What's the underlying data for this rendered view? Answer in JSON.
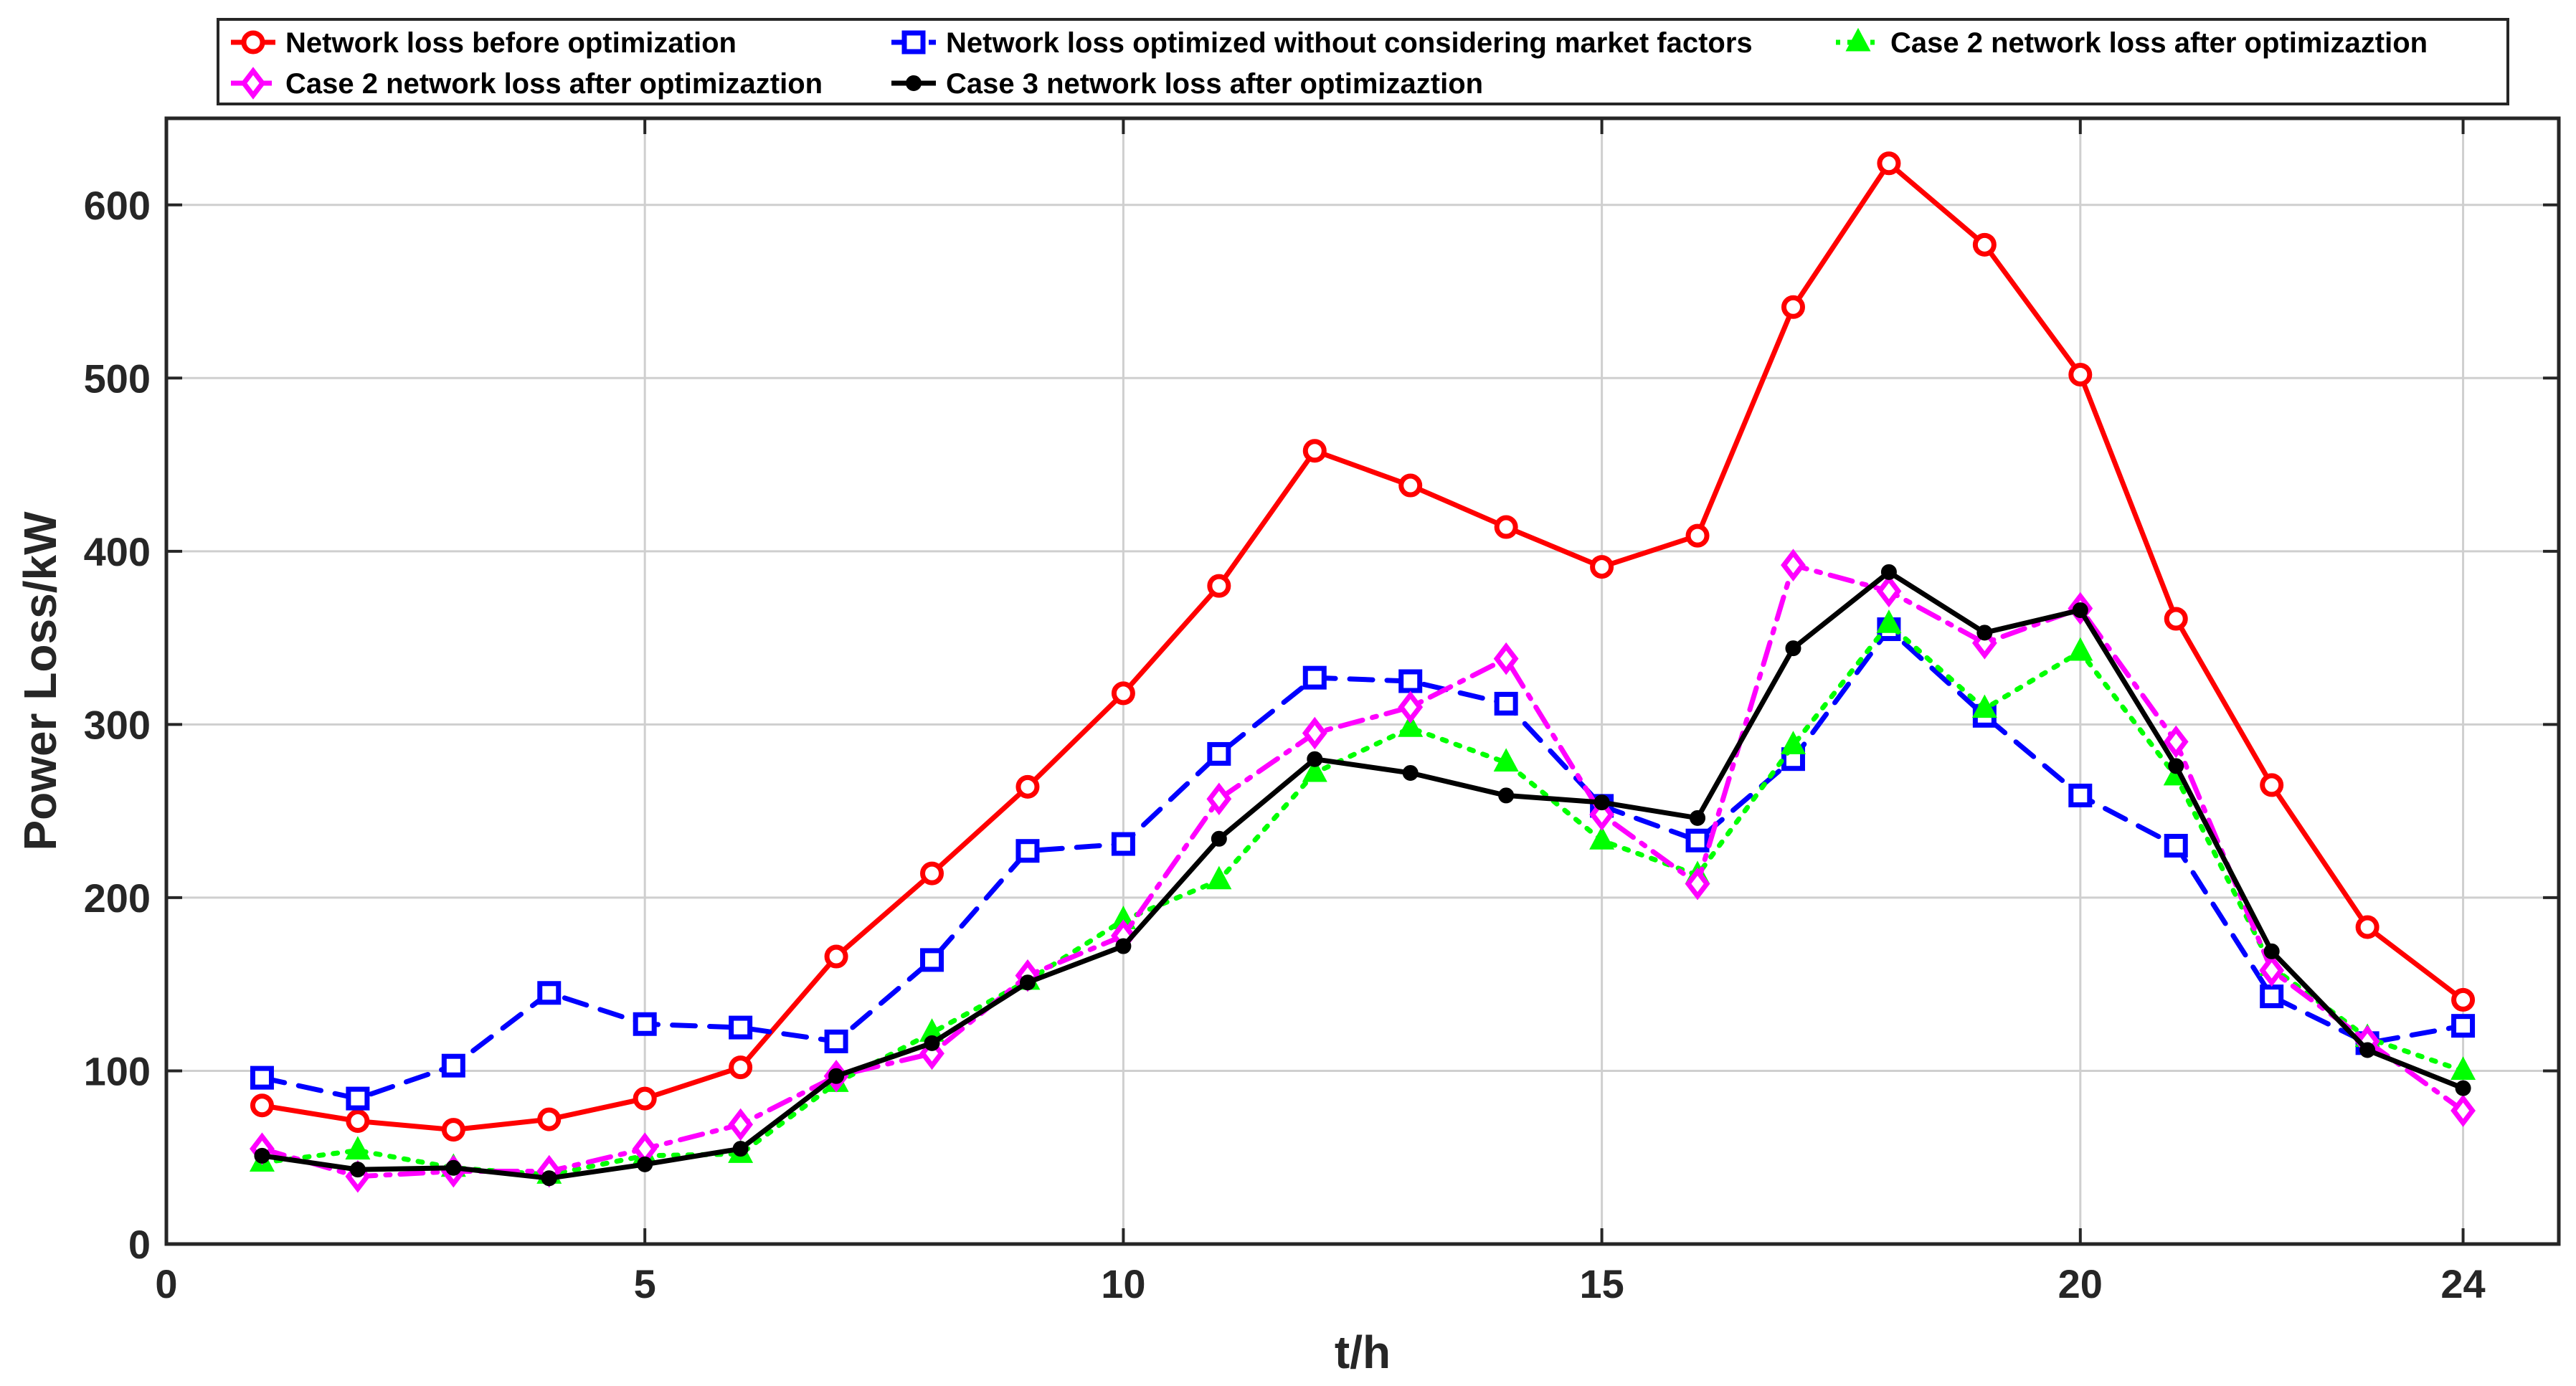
{
  "chart_data": {
    "type": "line",
    "xlabel": "t/h",
    "ylabel": "Power Loss/kW",
    "xlim": [
      0,
      25
    ],
    "ylim": [
      0,
      650
    ],
    "x_ticks": [
      0,
      5,
      10,
      15,
      20,
      24
    ],
    "y_ticks": [
      0,
      100,
      200,
      300,
      400,
      500,
      600
    ],
    "grid": true,
    "legend_position": "top",
    "x": [
      1,
      2,
      3,
      4,
      5,
      6,
      7,
      8,
      9,
      10,
      11,
      12,
      13,
      14,
      15,
      16,
      17,
      18,
      19,
      20,
      21,
      22,
      23,
      24
    ],
    "series": [
      {
        "name": "Network loss before optimization",
        "color": "#ff0000",
        "dash": "solid",
        "marker": "circle",
        "values": [
          80,
          71,
          66,
          72,
          84,
          102,
          166,
          214,
          264,
          318,
          380,
          458,
          438,
          414,
          391,
          409,
          541,
          624,
          577,
          502,
          361,
          265,
          183,
          141
        ]
      },
      {
        "name": "Network loss optimized without considering market factors",
        "color": "#0000ff",
        "dash": "dashed",
        "marker": "square",
        "values": [
          96,
          84,
          103,
          145,
          127,
          125,
          117,
          164,
          227,
          231,
          283,
          327,
          325,
          312,
          253,
          233,
          280,
          355,
          305,
          259,
          230,
          143,
          116,
          126
        ]
      },
      {
        "name": "Case 2 network loss after optimizaztion",
        "color": "#00ff00",
        "dash": "dotted",
        "marker": "triangle",
        "values": [
          47,
          54,
          44,
          40,
          51,
          52,
          93,
          122,
          152,
          187,
          210,
          272,
          298,
          278,
          233,
          213,
          288,
          358,
          309,
          342,
          270,
          160,
          119,
          100
        ]
      },
      {
        "name": "Case 2 network loss after optimizaztion",
        "color": "#ff00ff",
        "dash": "dashdot",
        "marker": "diamond",
        "values": [
          55,
          39,
          42,
          42,
          55,
          69,
          97,
          110,
          155,
          178,
          257,
          295,
          310,
          338,
          248,
          208,
          392,
          377,
          347,
          367,
          290,
          158,
          117,
          77
        ]
      },
      {
        "name": "Case 3 network loss after optimizaztion",
        "color": "#000000",
        "dash": "solid",
        "marker": "dot",
        "values": [
          51,
          43,
          44,
          38,
          46,
          55,
          97,
          116,
          151,
          172,
          234,
          280,
          272,
          259,
          255,
          246,
          344,
          388,
          353,
          366,
          276,
          169,
          112,
          90
        ]
      }
    ]
  }
}
